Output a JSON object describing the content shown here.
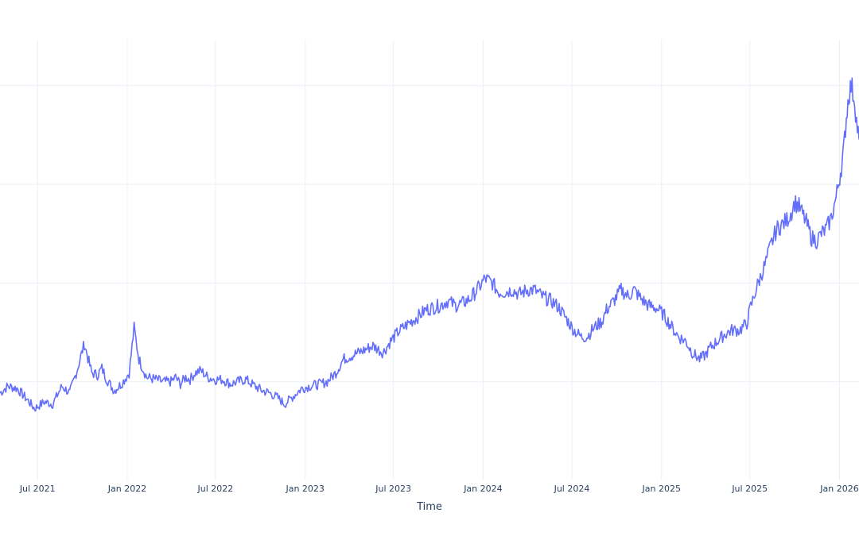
{
  "chart_data": {
    "type": "line",
    "title": "",
    "xlabel": "Time",
    "ylabel": "",
    "x_axis_type": "date",
    "xlim": [
      "2021-04-15",
      "2026-02-10"
    ],
    "ylim": [
      0,
      100
    ],
    "x_ticks": [
      {
        "date": "2021-07-01",
        "label": "Jul 2021"
      },
      {
        "date": "2022-01-01",
        "label": "Jan 2022"
      },
      {
        "date": "2022-07-01",
        "label": "Jul 2022"
      },
      {
        "date": "2023-01-01",
        "label": "Jan 2023"
      },
      {
        "date": "2023-07-01",
        "label": "Jul 2023"
      },
      {
        "date": "2024-01-01",
        "label": "Jan 2024"
      },
      {
        "date": "2024-07-01",
        "label": "Jul 2024"
      },
      {
        "date": "2025-01-01",
        "label": "Jan 2025"
      },
      {
        "date": "2025-07-01",
        "label": "Jul 2025"
      },
      {
        "date": "2026-01-01",
        "label": "Jan 2026"
      }
    ],
    "y_gridlines": [
      22,
      44,
      66,
      88
    ],
    "grid": true,
    "line_color": "#636efa",
    "series": [
      {
        "x": [
          "2021-04-15",
          "2021-05-01",
          "2021-05-20",
          "2021-06-10",
          "2021-06-25",
          "2021-07-15",
          "2021-08-01",
          "2021-08-20",
          "2021-09-05",
          "2021-09-20",
          "2021-10-05",
          "2021-10-20",
          "2021-11-01",
          "2021-11-10",
          "2021-11-20",
          "2021-12-05",
          "2021-12-20",
          "2022-01-05",
          "2022-01-15",
          "2022-01-25",
          "2022-02-10",
          "2022-03-01",
          "2022-03-15",
          "2022-04-01",
          "2022-04-10",
          "2022-04-20",
          "2022-05-01",
          "2022-05-10",
          "2022-05-20",
          "2022-06-01",
          "2022-06-15",
          "2022-07-01",
          "2022-07-15",
          "2022-08-01",
          "2022-08-15",
          "2022-09-01",
          "2022-09-20",
          "2022-10-05",
          "2022-10-20",
          "2022-11-05",
          "2022-11-20",
          "2022-12-10",
          "2022-12-25",
          "2023-01-10",
          "2023-02-01",
          "2023-02-15",
          "2023-03-05",
          "2023-03-20",
          "2023-04-10",
          "2023-05-01",
          "2023-05-20",
          "2023-06-10",
          "2023-06-25",
          "2023-07-10",
          "2023-08-01",
          "2023-08-20",
          "2023-09-05",
          "2023-09-20",
          "2023-10-05",
          "2023-10-20",
          "2023-11-05",
          "2023-11-20",
          "2023-12-05",
          "2023-12-20",
          "2024-01-05",
          "2024-01-20",
          "2024-02-01",
          "2024-02-15",
          "2024-03-01",
          "2024-03-15",
          "2024-04-01",
          "2024-04-15",
          "2024-05-01",
          "2024-05-20",
          "2024-06-05",
          "2024-06-20",
          "2024-07-05",
          "2024-07-20",
          "2024-08-01",
          "2024-08-15",
          "2024-09-01",
          "2024-09-10",
          "2024-09-25",
          "2024-10-10",
          "2024-10-25",
          "2024-11-05",
          "2024-11-20",
          "2024-12-05",
          "2024-12-20",
          "2025-01-05",
          "2025-01-20",
          "2025-02-05",
          "2025-02-20",
          "2025-03-05",
          "2025-03-20",
          "2025-04-01",
          "2025-04-10",
          "2025-04-25",
          "2025-05-10",
          "2025-05-25",
          "2025-06-10",
          "2025-06-25",
          "2025-07-01",
          "2025-07-15",
          "2025-08-01",
          "2025-08-15",
          "2025-08-25",
          "2025-09-05",
          "2025-09-15",
          "2025-09-25",
          "2025-10-01",
          "2025-10-10",
          "2025-10-25",
          "2025-11-05",
          "2025-11-15",
          "2025-11-25",
          "2025-12-05",
          "2025-12-15",
          "2025-12-25",
          "2026-01-05",
          "2026-01-10",
          "2026-01-15",
          "2026-01-20",
          "2026-01-25",
          "2026-02-01",
          "2026-02-05",
          "2026-02-10"
        ],
        "y": [
          19.5,
          21.0,
          20.5,
          18.0,
          16.0,
          17.5,
          17.0,
          21.0,
          19.5,
          24.5,
          30.5,
          24.0,
          23.5,
          25.0,
          22.5,
          20.0,
          21.5,
          24.0,
          34.0,
          27.0,
          23.0,
          22.5,
          22.0,
          22.0,
          23.0,
          21.5,
          23.0,
          22.5,
          24.0,
          24.5,
          23.0,
          22.5,
          22.5,
          21.5,
          22.0,
          22.5,
          21.0,
          20.0,
          19.5,
          18.5,
          17.0,
          19.0,
          20.5,
          21.0,
          21.5,
          22.0,
          24.0,
          27.0,
          28.0,
          29.0,
          30.0,
          28.5,
          31.0,
          33.0,
          35.0,
          36.5,
          38.0,
          38.5,
          39.0,
          40.0,
          39.0,
          39.5,
          40.5,
          42.5,
          45.0,
          44.0,
          42.0,
          42.0,
          42.5,
          41.5,
          42.5,
          42.5,
          41.0,
          40.0,
          38.5,
          36.0,
          33.5,
          32.0,
          32.0,
          34.0,
          35.5,
          38.0,
          40.0,
          42.5,
          41.0,
          42.5,
          40.5,
          39.0,
          38.5,
          37.0,
          34.5,
          32.0,
          31.0,
          28.5,
          27.0,
          28.0,
          29.5,
          31.0,
          32.5,
          33.5,
          33.5,
          35.0,
          38.0,
          43.0,
          48.0,
          53.0,
          56.0,
          57.0,
          58.0,
          60.0,
          62.0,
          61.0,
          57.5,
          54.0,
          53.5,
          55.0,
          56.0,
          58.5,
          63.0,
          70.0,
          74.0,
          81.0,
          86.0,
          88.0,
          85.0,
          80.0,
          76.0
        ]
      }
    ]
  }
}
